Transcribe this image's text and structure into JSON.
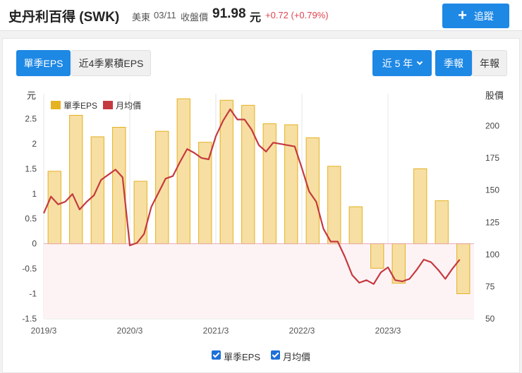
{
  "header": {
    "stock_name": "史丹利百得 (SWK)",
    "market": "美東",
    "date": "03/11",
    "price_label": "收盤價",
    "price": "91.98",
    "price_unit": "元",
    "change": "+0.72 (+0.79%)",
    "track_button": "追蹤"
  },
  "toolbar": {
    "tab_single": "單季EPS",
    "tab_cumulative": "近4季累積EPS",
    "range_dropdown": "近 5 年",
    "tab_quarterly": "季報",
    "tab_annual": "年報"
  },
  "colors": {
    "accent": "#1e88e5",
    "bar_fill": "#f7dfa3",
    "bar_stroke": "#e3b021",
    "line": "#c43a3f",
    "negative_band": "#fdf3f5"
  },
  "chart_data": {
    "type": "bar",
    "left_axis_title": "元",
    "right_axis_title": "股價",
    "legend": [
      "單季EPS",
      "月均價"
    ],
    "x_tick_labels": [
      "2019/3",
      "2020/3",
      "2021/3",
      "2022/3",
      "2023/3"
    ],
    "left_ylim": [
      -1.5,
      3
    ],
    "left_ticks": [
      "-1.5",
      "-1",
      "-0.5",
      "0",
      "0.5",
      "1",
      "1.5",
      "2",
      "2.5"
    ],
    "right_ylim": [
      50,
      225
    ],
    "right_ticks": [
      "50",
      "75",
      "100",
      "125",
      "150",
      "175",
      "200"
    ],
    "eps_quarters": [
      "2019Q1",
      "2019Q2",
      "2019Q3",
      "2019Q4",
      "2020Q1",
      "2020Q2",
      "2020Q3",
      "2020Q4",
      "2021Q1",
      "2021Q2",
      "2021Q3",
      "2021Q4",
      "2022Q1",
      "2022Q2",
      "2022Q3",
      "2022Q4",
      "2023Q1",
      "2023Q2",
      "2023Q3",
      "2023Q4"
    ],
    "eps_values": [
      1.45,
      2.57,
      2.14,
      2.33,
      1.25,
      2.25,
      2.9,
      2.03,
      2.87,
      2.77,
      2.4,
      2.38,
      2.12,
      1.55,
      0.74,
      -0.49,
      -0.79,
      1.5,
      0.86,
      -1.0
    ],
    "monthly_avg_price": [
      132,
      145,
      139,
      141,
      147,
      135,
      141,
      146,
      158,
      162,
      166,
      160,
      107,
      109,
      116,
      137,
      148,
      159,
      161,
      172,
      182,
      179,
      175,
      174,
      192,
      204,
      213,
      205,
      205,
      197,
      185,
      180,
      187,
      186,
      185,
      184,
      167,
      149,
      141,
      120,
      110,
      110,
      98,
      84,
      78,
      80,
      77,
      86,
      90,
      80,
      79,
      81,
      88,
      96,
      94,
      88,
      81,
      89,
      96
    ]
  },
  "bottom_legend": {
    "eps_checkbox": "單季EPS",
    "price_checkbox": "月均價"
  }
}
